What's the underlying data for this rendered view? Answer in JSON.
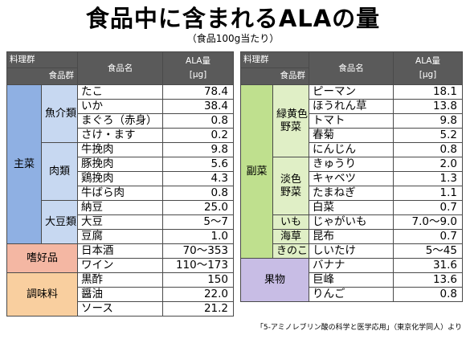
{
  "title": "食品中に含まれるALAの量",
  "subtitle": "（食品100g当たり）",
  "source": "「5-アミノレブリン酸の科学と医学応用」（東京化学同人）より",
  "headers": {
    "cuisine_group": "料理群",
    "food_group": "食品群",
    "food_name": "食品名",
    "ala_label": "ALA量",
    "ala_unit": "[μg]"
  },
  "left_table": {
    "groups": {
      "main": "主菜",
      "seafood": "魚介類",
      "meat": "肉類",
      "soy": "大豆類",
      "luxury": "嗜好品",
      "seasoning": "調味料"
    },
    "rows": [
      {
        "food": "たこ",
        "ala": "78.4"
      },
      {
        "food": "いか",
        "ala": "38.4"
      },
      {
        "food": "まぐろ（赤身）",
        "ala": "0.8"
      },
      {
        "food": "さけ・ます",
        "ala": "0.2"
      },
      {
        "food": "牛挽肉",
        "ala": "9.8"
      },
      {
        "food": "豚挽肉",
        "ala": "5.6"
      },
      {
        "food": "鶏挽肉",
        "ala": "4.3"
      },
      {
        "food": "牛ばら肉",
        "ala": "0.8"
      },
      {
        "food": "納豆",
        "ala": "25.0"
      },
      {
        "food": "大豆",
        "ala": "5〜7"
      },
      {
        "food": "豆腐",
        "ala": "1.0"
      },
      {
        "food": "日本酒",
        "ala": "70〜353"
      },
      {
        "food": "ワイン",
        "ala": "110〜173"
      },
      {
        "food": "黒酢",
        "ala": "150"
      },
      {
        "food": "醤油",
        "ala": "22.0"
      },
      {
        "food": "ソース",
        "ala": "21.2"
      }
    ]
  },
  "right_table": {
    "groups": {
      "side": "副菜",
      "green_yellow_line1": "緑黄色",
      "green_yellow_line2": "野菜",
      "light_line1": "淡色",
      "light_line2": "野菜",
      "potato": "いも",
      "seaweed": "海草",
      "mushroom": "きのこ",
      "fruit": "果物"
    },
    "rows": [
      {
        "food": "ピーマン",
        "ala": "18.1"
      },
      {
        "food": "ほうれん草",
        "ala": "13.8"
      },
      {
        "food": "トマト",
        "ala": "9.8"
      },
      {
        "food": "春菊",
        "ala": "5.2"
      },
      {
        "food": "にんじん",
        "ala": "0.8"
      },
      {
        "food": "きゅうり",
        "ala": "2.0"
      },
      {
        "food": "キャベツ",
        "ala": "1.3"
      },
      {
        "food": "たまねぎ",
        "ala": "1.1"
      },
      {
        "food": "白菜",
        "ala": "0.7"
      },
      {
        "food": "じゃがいも",
        "ala": "7.0〜9.0"
      },
      {
        "food": "昆布",
        "ala": "0.7"
      },
      {
        "food": "しいたけ",
        "ala": "5〜45"
      },
      {
        "food": "バナナ",
        "ala": "31.6"
      },
      {
        "food": "巨峰",
        "ala": "13.6"
      },
      {
        "food": "りんご",
        "ala": "0.8"
      }
    ]
  }
}
